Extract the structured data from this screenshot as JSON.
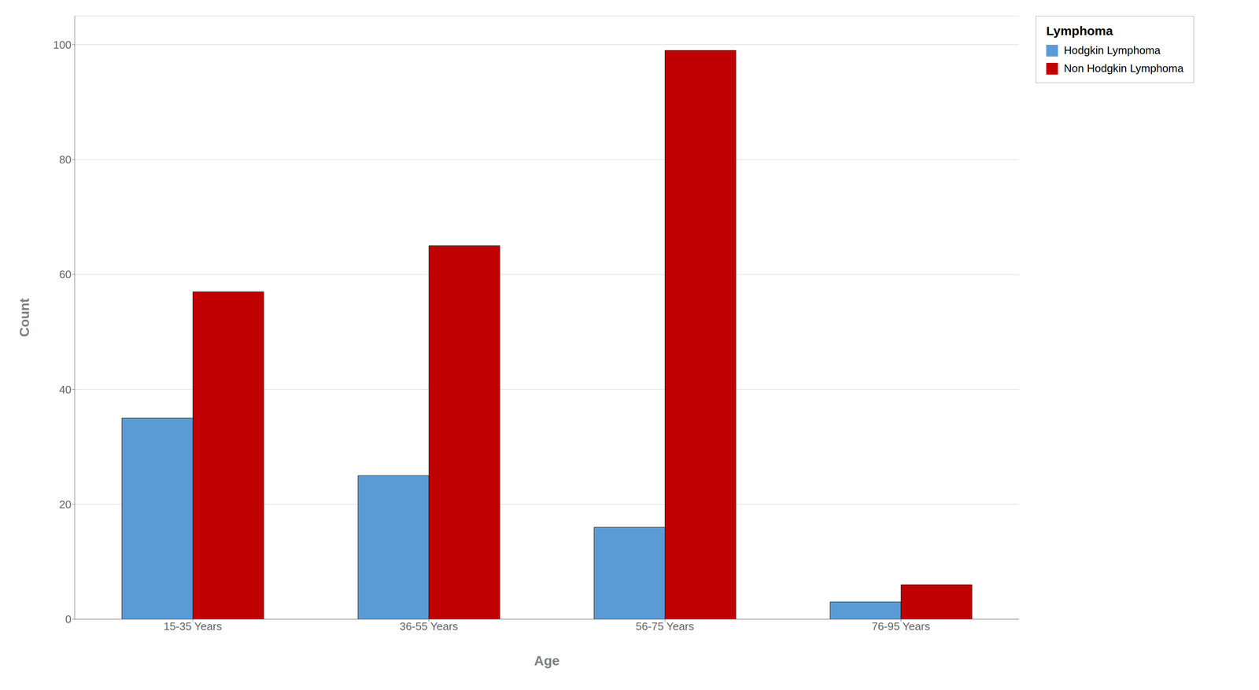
{
  "chart_data": {
    "type": "bar",
    "categories": [
      "15-35 Years",
      "36-55 Years",
      "56-75 Years",
      "76-95 Years"
    ],
    "series": [
      {
        "name": "Hodgkin Lymphoma",
        "color": "#5B9BD5",
        "values": [
          35,
          25,
          16,
          3
        ]
      },
      {
        "name": "Non Hodgkin Lymphoma",
        "color": "#C00000",
        "values": [
          57,
          65,
          99,
          6
        ]
      }
    ],
    "xlabel": "Age",
    "ylabel": "Count",
    "legend_title": "Lymphoma",
    "ylim": [
      0,
      105
    ],
    "yticks": [
      0,
      20,
      40,
      60,
      80,
      100
    ],
    "grid": true,
    "legend": "upper right"
  }
}
